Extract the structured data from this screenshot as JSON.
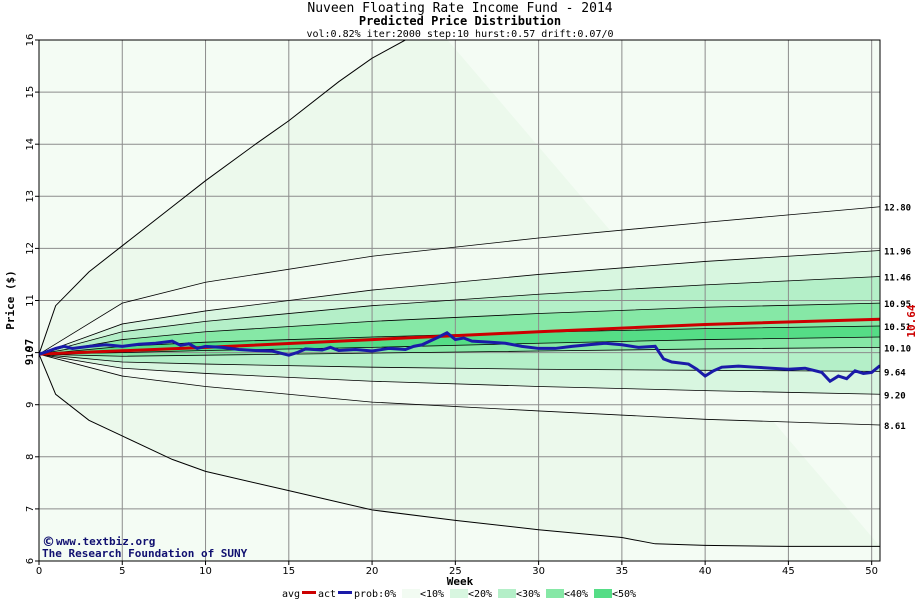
{
  "chart_data": {
    "type": "area",
    "title": "Nuveen Floating Rate Income Fund - 2014",
    "subtitle": "Predicted Price Distribution",
    "params": "vol:0.82% iter:2000 step:10 hurst:0.57 drift:0.07/0",
    "xlabel": "Week",
    "ylabel": "Price ($)",
    "xlim": [
      0,
      50.5
    ],
    "ylim": [
      6,
      16
    ],
    "xticks": [
      0,
      5,
      10,
      15,
      20,
      25,
      30,
      35,
      40,
      45,
      50
    ],
    "yticks": [
      6,
      7,
      8,
      9,
      10,
      11,
      12,
      13,
      14,
      15,
      16
    ],
    "grid": true,
    "start_price": 9.97,
    "start_price_label": "9.97",
    "final_avg_label": "10.64",
    "band_levels": [
      {
        "label": "12.80",
        "value": 12.8
      },
      {
        "label": "11.96",
        "value": 11.96
      },
      {
        "label": "11.46",
        "value": 11.46
      },
      {
        "label": "10.95",
        "value": 10.95
      },
      {
        "label": "10.51",
        "value": 10.51
      },
      {
        "label": "10.10",
        "value": 10.1
      },
      {
        "label": "9.64",
        "value": 9.64
      },
      {
        "label": "9.20",
        "value": 9.2
      },
      {
        "label": "8.61",
        "value": 8.61
      }
    ],
    "upper_bounds": [
      {
        "x": 0,
        "y": 9.97
      },
      {
        "x": 1,
        "y": 10.9
      },
      {
        "x": 3,
        "y": 11.55
      },
      {
        "x": 5,
        "y": 12.05
      },
      {
        "x": 8,
        "y": 12.8
      },
      {
        "x": 10,
        "y": 13.3
      },
      {
        "x": 13,
        "y": 14.0
      },
      {
        "x": 15,
        "y": 14.45
      },
      {
        "x": 18,
        "y": 15.2
      },
      {
        "x": 20,
        "y": 15.65
      },
      {
        "x": 22,
        "y": 16.0
      },
      {
        "x": 24,
        "y": 16.2
      }
    ],
    "lower_bounds": [
      {
        "x": 0,
        "y": 9.97
      },
      {
        "x": 1,
        "y": 9.2
      },
      {
        "x": 3,
        "y": 8.7
      },
      {
        "x": 5,
        "y": 8.4
      },
      {
        "x": 8,
        "y": 7.95
      },
      {
        "x": 10,
        "y": 7.72
      },
      {
        "x": 15,
        "y": 7.35
      },
      {
        "x": 20,
        "y": 6.98
      },
      {
        "x": 25,
        "y": 6.78
      },
      {
        "x": 30,
        "y": 6.6
      },
      {
        "x": 35,
        "y": 6.45
      },
      {
        "x": 37,
        "y": 6.33
      },
      {
        "x": 40,
        "y": 6.3
      },
      {
        "x": 45,
        "y": 6.28
      },
      {
        "x": 50.5,
        "y": 6.28
      }
    ],
    "series": [
      {
        "name": "avg",
        "color": "#cc0000",
        "points": [
          {
            "x": 0,
            "y": 9.97
          },
          {
            "x": 10,
            "y": 10.1
          },
          {
            "x": 20,
            "y": 10.25
          },
          {
            "x": 30,
            "y": 10.4
          },
          {
            "x": 40,
            "y": 10.54
          },
          {
            "x": 50.5,
            "y": 10.64
          }
        ]
      },
      {
        "name": "act",
        "color": "#1a1aa8",
        "points": [
          {
            "x": 0,
            "y": 9.97
          },
          {
            "x": 0.5,
            "y": 10.02
          },
          {
            "x": 1,
            "y": 10.08
          },
          {
            "x": 1.5,
            "y": 10.12
          },
          {
            "x": 2,
            "y": 10.08
          },
          {
            "x": 3,
            "y": 10.12
          },
          {
            "x": 4,
            "y": 10.15
          },
          {
            "x": 5,
            "y": 10.12
          },
          {
            "x": 6,
            "y": 10.16
          },
          {
            "x": 7,
            "y": 10.18
          },
          {
            "x": 8,
            "y": 10.22
          },
          {
            "x": 8.5,
            "y": 10.14
          },
          {
            "x": 9,
            "y": 10.17
          },
          {
            "x": 9.5,
            "y": 10.08
          },
          {
            "x": 10,
            "y": 10.12
          },
          {
            "x": 11,
            "y": 10.1
          },
          {
            "x": 12,
            "y": 10.06
          },
          {
            "x": 13,
            "y": 10.04
          },
          {
            "x": 14,
            "y": 10.03
          },
          {
            "x": 15,
            "y": 9.95
          },
          {
            "x": 15.5,
            "y": 10.0
          },
          {
            "x": 16,
            "y": 10.07
          },
          {
            "x": 17,
            "y": 10.05
          },
          {
            "x": 17.5,
            "y": 10.1
          },
          {
            "x": 18,
            "y": 10.04
          },
          {
            "x": 19,
            "y": 10.06
          },
          {
            "x": 20,
            "y": 10.03
          },
          {
            "x": 21,
            "y": 10.08
          },
          {
            "x": 22,
            "y": 10.06
          },
          {
            "x": 22.5,
            "y": 10.12
          },
          {
            "x": 23,
            "y": 10.15
          },
          {
            "x": 24,
            "y": 10.3
          },
          {
            "x": 24.5,
            "y": 10.38
          },
          {
            "x": 25,
            "y": 10.25
          },
          {
            "x": 25.5,
            "y": 10.28
          },
          {
            "x": 26,
            "y": 10.22
          },
          {
            "x": 27,
            "y": 10.2
          },
          {
            "x": 28,
            "y": 10.18
          },
          {
            "x": 29,
            "y": 10.12
          },
          {
            "x": 30,
            "y": 10.08
          },
          {
            "x": 31,
            "y": 10.08
          },
          {
            "x": 32,
            "y": 10.12
          },
          {
            "x": 33,
            "y": 10.15
          },
          {
            "x": 34,
            "y": 10.18
          },
          {
            "x": 35,
            "y": 10.15
          },
          {
            "x": 36,
            "y": 10.1
          },
          {
            "x": 37,
            "y": 10.12
          },
          {
            "x": 37.5,
            "y": 9.88
          },
          {
            "x": 38,
            "y": 9.82
          },
          {
            "x": 39,
            "y": 9.78
          },
          {
            "x": 39.5,
            "y": 9.68
          },
          {
            "x": 40,
            "y": 9.55
          },
          {
            "x": 40.5,
            "y": 9.65
          },
          {
            "x": 41,
            "y": 9.72
          },
          {
            "x": 42,
            "y": 9.74
          },
          {
            "x": 43,
            "y": 9.72
          },
          {
            "x": 44,
            "y": 9.7
          },
          {
            "x": 45,
            "y": 9.68
          },
          {
            "x": 46,
            "y": 9.7
          },
          {
            "x": 47,
            "y": 9.62
          },
          {
            "x": 47.5,
            "y": 9.45
          },
          {
            "x": 48,
            "y": 9.55
          },
          {
            "x": 48.5,
            "y": 9.5
          },
          {
            "x": 49,
            "y": 9.65
          },
          {
            "x": 49.5,
            "y": 9.6
          },
          {
            "x": 50,
            "y": 9.62
          },
          {
            "x": 50.5,
            "y": 9.75
          }
        ]
      }
    ],
    "prob_bands": [
      {
        "label": "<10%",
        "color": "#f2fbf2",
        "upper": [
          {
            "x": 0,
            "y": 9.97
          },
          {
            "x": 5,
            "y": 10.95
          },
          {
            "x": 10,
            "y": 11.35
          },
          {
            "x": 20,
            "y": 11.85
          },
          {
            "x": 30,
            "y": 12.2
          },
          {
            "x": 40,
            "y": 12.5
          },
          {
            "x": 50.5,
            "y": 12.8
          }
        ],
        "lower": [
          {
            "x": 0,
            "y": 9.97
          },
          {
            "x": 5,
            "y": 9.55
          },
          {
            "x": 10,
            "y": 9.35
          },
          {
            "x": 20,
            "y": 9.05
          },
          {
            "x": 30,
            "y": 8.88
          },
          {
            "x": 40,
            "y": 8.72
          },
          {
            "x": 50.5,
            "y": 8.61
          }
        ]
      },
      {
        "label": "<20%",
        "color": "#d8f6e0",
        "upper": [
          {
            "x": 0,
            "y": 9.97
          },
          {
            "x": 5,
            "y": 10.55
          },
          {
            "x": 10,
            "y": 10.8
          },
          {
            "x": 20,
            "y": 11.2
          },
          {
            "x": 30,
            "y": 11.5
          },
          {
            "x": 40,
            "y": 11.75
          },
          {
            "x": 50.5,
            "y": 11.96
          }
        ],
        "lower": [
          {
            "x": 0,
            "y": 9.97
          },
          {
            "x": 5,
            "y": 9.7
          },
          {
            "x": 10,
            "y": 9.6
          },
          {
            "x": 20,
            "y": 9.45
          },
          {
            "x": 30,
            "y": 9.35
          },
          {
            "x": 40,
            "y": 9.27
          },
          {
            "x": 50.5,
            "y": 9.2
          }
        ]
      },
      {
        "label": "<30%",
        "color": "#b4efc8",
        "upper": [
          {
            "x": 0,
            "y": 9.97
          },
          {
            "x": 5,
            "y": 10.4
          },
          {
            "x": 10,
            "y": 10.6
          },
          {
            "x": 20,
            "y": 10.9
          },
          {
            "x": 30,
            "y": 11.12
          },
          {
            "x": 40,
            "y": 11.3
          },
          {
            "x": 50.5,
            "y": 11.46
          }
        ],
        "lower": [
          {
            "x": 0,
            "y": 9.97
          },
          {
            "x": 5,
            "y": 9.82
          },
          {
            "x": 10,
            "y": 9.78
          },
          {
            "x": 20,
            "y": 9.72
          },
          {
            "x": 30,
            "y": 9.68
          },
          {
            "x": 40,
            "y": 9.66
          },
          {
            "x": 50.5,
            "y": 9.64
          }
        ]
      },
      {
        "label": "<40%",
        "color": "#86e8a6",
        "upper": [
          {
            "x": 0,
            "y": 9.97
          },
          {
            "x": 5,
            "y": 10.25
          },
          {
            "x": 10,
            "y": 10.4
          },
          {
            "x": 20,
            "y": 10.6
          },
          {
            "x": 30,
            "y": 10.75
          },
          {
            "x": 40,
            "y": 10.87
          },
          {
            "x": 50.5,
            "y": 10.95
          }
        ],
        "lower": [
          {
            "x": 0,
            "y": 9.97
          },
          {
            "x": 5,
            "y": 9.93
          },
          {
            "x": 10,
            "y": 9.95
          },
          {
            "x": 20,
            "y": 9.99
          },
          {
            "x": 30,
            "y": 10.03
          },
          {
            "x": 40,
            "y": 10.07
          },
          {
            "x": 50.5,
            "y": 10.1
          }
        ]
      },
      {
        "label": "<50%",
        "color": "#55dd86",
        "upper": [
          {
            "x": 0,
            "y": 9.97
          },
          {
            "x": 5,
            "y": 10.12
          },
          {
            "x": 10,
            "y": 10.2
          },
          {
            "x": 20,
            "y": 10.3
          },
          {
            "x": 30,
            "y": 10.39
          },
          {
            "x": 40,
            "y": 10.46
          },
          {
            "x": 50.5,
            "y": 10.51
          }
        ],
        "lower": [
          {
            "x": 0,
            "y": 9.97
          },
          {
            "x": 5,
            "y": 10.0
          },
          {
            "x": 10,
            "y": 10.04
          },
          {
            "x": 20,
            "y": 10.1
          },
          {
            "x": 30,
            "y": 10.18
          },
          {
            "x": 40,
            "y": 10.25
          },
          {
            "x": 50.5,
            "y": 10.3
          }
        ]
      }
    ],
    "legend": {
      "avg": "avg",
      "act": "act",
      "prob": "prob:0%",
      "items": [
        "<10%",
        "<20%",
        "<30%",
        "<40%",
        "<50%"
      ]
    },
    "credit_line1": "www.textbiz.org",
    "credit_line2": "The Research Foundation of SUNY"
  }
}
